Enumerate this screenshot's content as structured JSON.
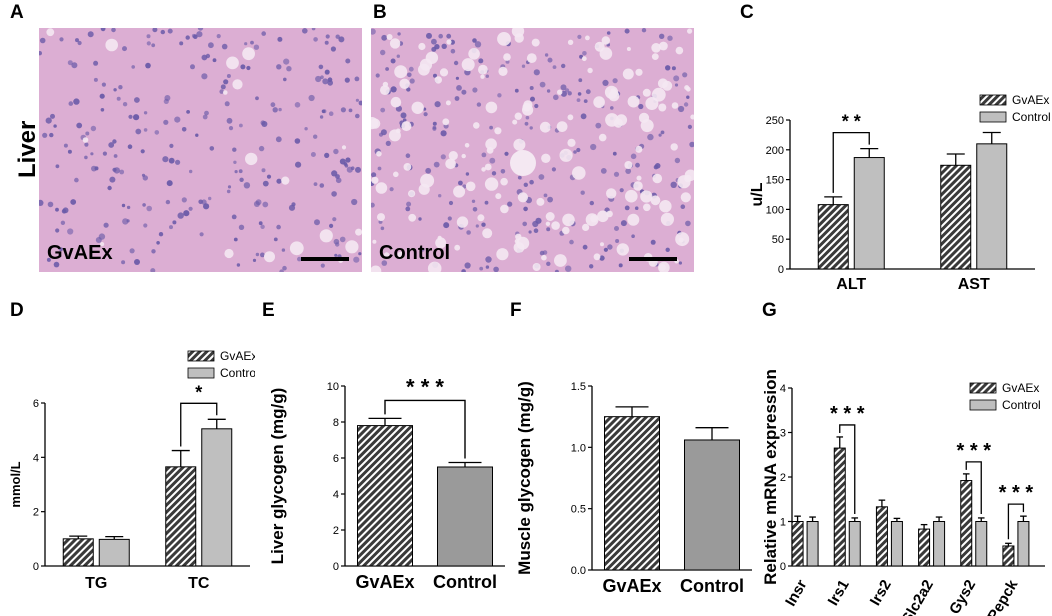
{
  "panels": {
    "A": {
      "letter": "A",
      "tissue_label": "Liver",
      "image_label": "GvAEx"
    },
    "B": {
      "letter": "B",
      "image_label": "Control"
    }
  },
  "colors": {
    "tissue_pink": "#dcaed3",
    "nuclei": "#6a5aa8",
    "vacuole": "#f4e8f2",
    "gvaex_fill": "#3a3a3a",
    "control_fill": "#bfbfbf",
    "control_dark_fill": "#9a9a9a"
  },
  "chart_data": [
    {
      "panel": "C",
      "type": "bar",
      "categories": [
        "ALT",
        "AST"
      ],
      "series": [
        {
          "name": "GvAEx",
          "values": [
            108,
            174
          ],
          "errors": [
            13,
            19
          ],
          "pattern": "hatched"
        },
        {
          "name": "Control",
          "values": [
            187,
            210
          ],
          "errors": [
            15,
            19
          ],
          "pattern": "light-grey"
        }
      ],
      "ylabel": "u/L",
      "xlabel": "",
      "ylim": [
        0,
        250
      ],
      "yticks": [
        "0",
        "50",
        "100",
        "150",
        "200",
        "250"
      ],
      "legend": "top-right",
      "annotations": [
        {
          "category_index": 0,
          "label": "* *"
        }
      ]
    },
    {
      "panel": "D",
      "type": "bar",
      "categories": [
        "TG",
        "TC"
      ],
      "series": [
        {
          "name": "GvAEx",
          "values": [
            1.0,
            3.65
          ],
          "errors": [
            0.1,
            0.6
          ],
          "pattern": "hatched"
        },
        {
          "name": "Control",
          "values": [
            0.98,
            5.05
          ],
          "errors": [
            0.1,
            0.35
          ],
          "pattern": "light-grey"
        }
      ],
      "ylabel": "mmol/L",
      "xlabel": "",
      "ylim": [
        0,
        6
      ],
      "yticks": [
        "0",
        "2",
        "4",
        "6"
      ],
      "legend": "top-right",
      "annotations": [
        {
          "category_index": 1,
          "label": "*"
        }
      ]
    },
    {
      "panel": "E",
      "type": "bar",
      "categories": [
        "GvAEx",
        "Control"
      ],
      "values": [
        7.8,
        5.5
      ],
      "errors": [
        0.4,
        0.25
      ],
      "ylabel": "Liver glycogen (mg/g)",
      "xlabel": "",
      "ylim": [
        0,
        10
      ],
      "yticks": [
        "0",
        "2",
        "4",
        "6",
        "8",
        "10"
      ],
      "annotations": [
        {
          "label": "* * *"
        }
      ]
    },
    {
      "panel": "F",
      "type": "bar",
      "categories": [
        "GvAEx",
        "Control"
      ],
      "values": [
        1.25,
        1.06
      ],
      "errors": [
        0.08,
        0.1
      ],
      "ylabel": "Muscle glycogen (mg/g)",
      "xlabel": "",
      "ylim": [
        0,
        1.5
      ],
      "yticks": [
        "0.0",
        "0.5",
        "1.0",
        "1.5"
      ]
    },
    {
      "panel": "G",
      "type": "bar",
      "categories": [
        "Insr",
        "Irs1",
        "Irs2",
        "Slc2a2",
        "Gys2",
        "Pepck"
      ],
      "series": [
        {
          "name": "GvAEx",
          "values": [
            1.0,
            2.65,
            1.33,
            0.83,
            1.92,
            0.45
          ],
          "errors": [
            0.12,
            0.25,
            0.15,
            0.1,
            0.15,
            0.06
          ],
          "pattern": "hatched"
        },
        {
          "name": "Control",
          "values": [
            1.0,
            1.0,
            1.0,
            1.0,
            1.0,
            1.0
          ],
          "errors": [
            0.1,
            0.08,
            0.07,
            0.1,
            0.08,
            0.12
          ],
          "pattern": "light-grey"
        }
      ],
      "ylabel": "Relative mRNA expression",
      "xlabel": "",
      "ylim": [
        0,
        4
      ],
      "yticks": [
        "0",
        "1",
        "2",
        "3",
        "4"
      ],
      "legend": "top-right",
      "annotations": [
        {
          "category_index": 1,
          "label": "* * *"
        },
        {
          "category_index": 4,
          "label": "* * *"
        },
        {
          "category_index": 5,
          "label": "* * *"
        }
      ]
    }
  ],
  "panel_letters": [
    "C",
    "D",
    "E",
    "F",
    "G"
  ]
}
